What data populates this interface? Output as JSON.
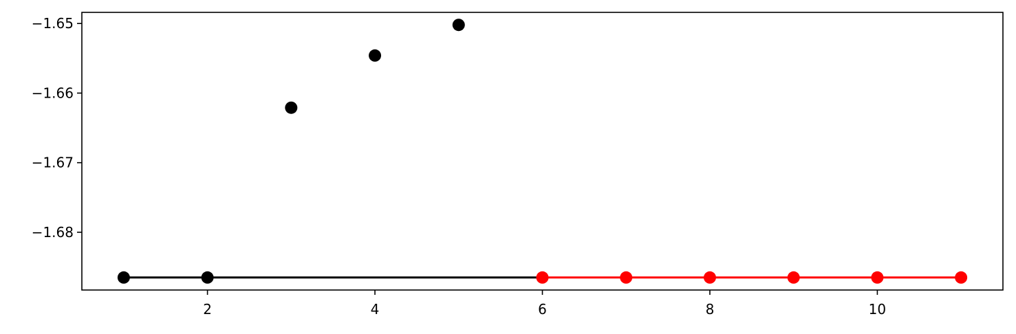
{
  "chart_data": {
    "type": "line",
    "xlim": [
      0.5,
      11.5
    ],
    "ylim": [
      -1.6883,
      -1.6484
    ],
    "x_ticks": [
      2,
      4,
      6,
      8,
      10
    ],
    "y_ticks": [
      -1.65,
      -1.66,
      -1.67,
      -1.68
    ],
    "x_tick_labels": [
      "2",
      "4",
      "6",
      "8",
      "10"
    ],
    "y_tick_labels": [
      "−1.65",
      "−1.66",
      "−1.67",
      "−1.68"
    ],
    "grid": false,
    "series": [
      {
        "color": "#000000",
        "style": "markers",
        "x": [
          1,
          2,
          3,
          4,
          5
        ],
        "y": [
          -1.6865,
          -1.6865,
          -1.6621,
          -1.6546,
          -1.6502
        ]
      },
      {
        "color": "#000000",
        "style": "line",
        "x": [
          1,
          2,
          6
        ],
        "y": [
          -1.6865,
          -1.6865,
          -1.6865
        ]
      },
      {
        "color": "#ff0000",
        "style": "line-markers",
        "x": [
          6,
          7,
          8,
          9,
          10,
          11
        ],
        "y": [
          -1.6865,
          -1.6865,
          -1.6865,
          -1.6865,
          -1.6865,
          -1.6865
        ]
      }
    ]
  }
}
